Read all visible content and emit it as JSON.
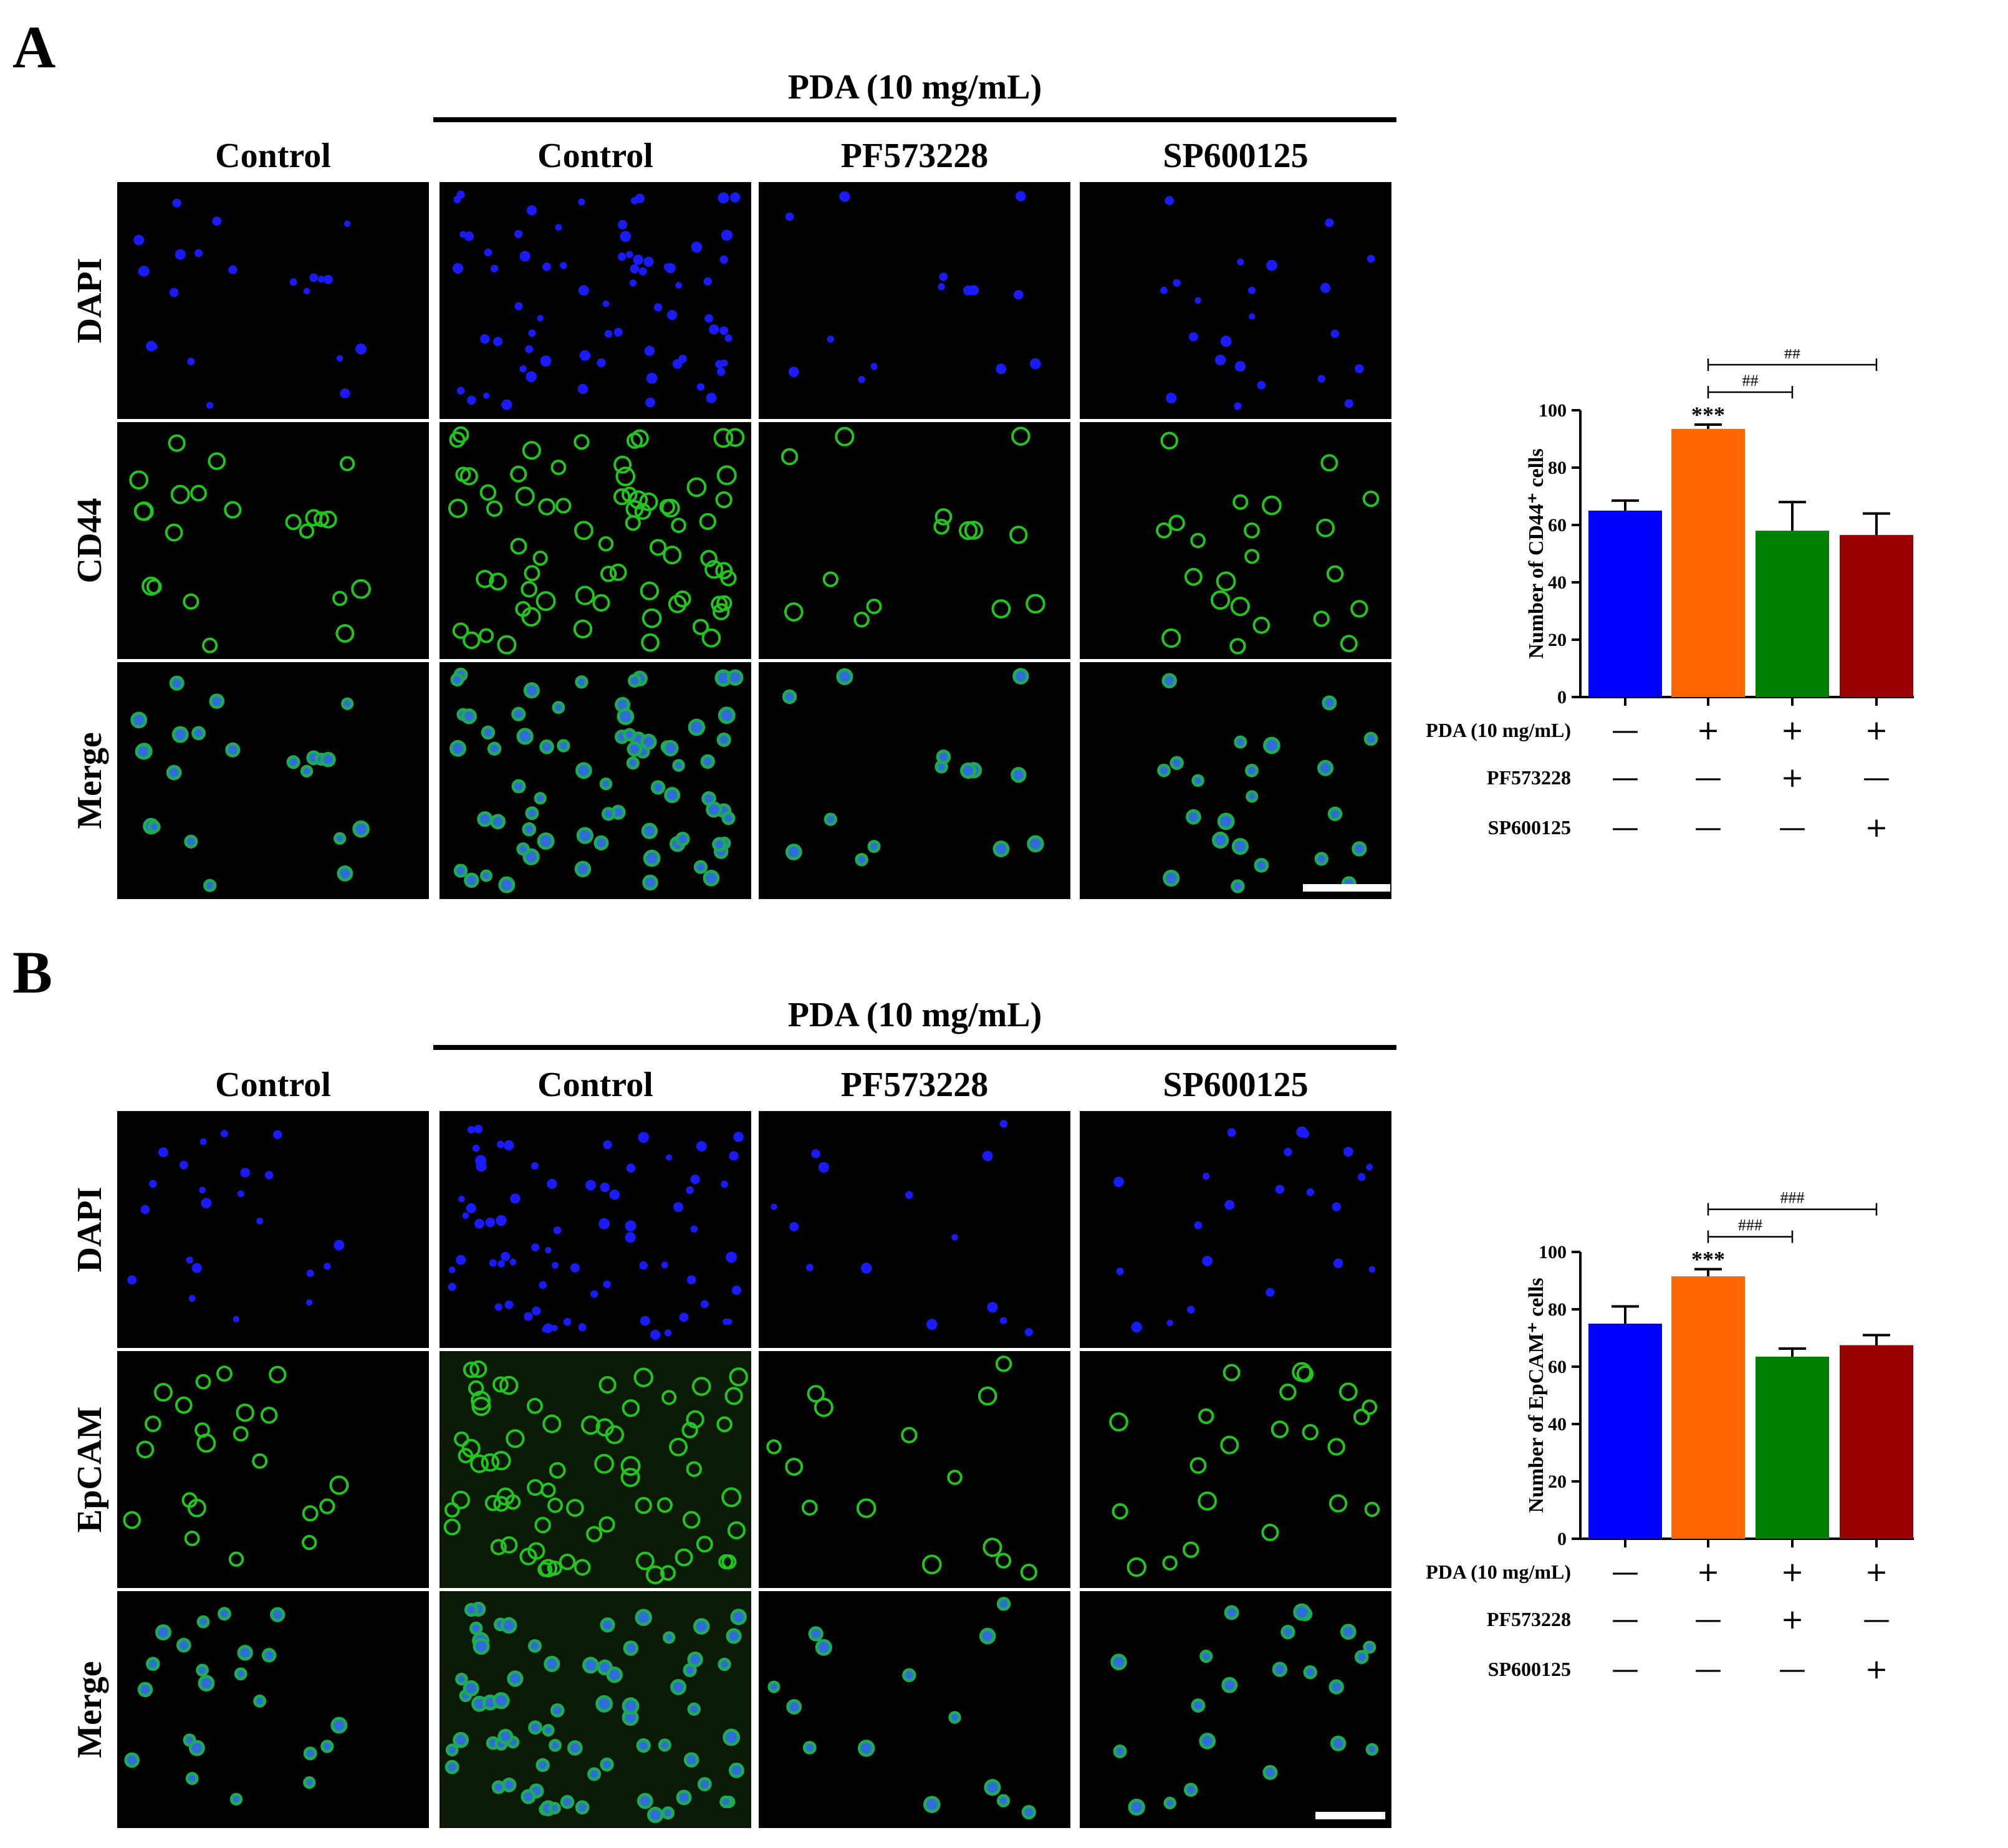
{
  "panels": [
    {
      "letter": "A",
      "group_label": "PDA (10 mg/mL)",
      "columns": [
        "Control",
        "Control",
        "PF573228",
        "SP600125"
      ],
      "rows": [
        "DAPI",
        "CD44",
        "Merge"
      ],
      "chart_data": {
        "type": "bar",
        "ylabel": "Number of CD44⁺ cells",
        "ylim": [
          0,
          100
        ],
        "yticks": [
          "0",
          "20",
          "40",
          "60",
          "80",
          "100"
        ],
        "values": [
          65,
          93.5,
          58,
          56.5
        ],
        "errors": [
          3.5,
          1.5,
          10,
          7.5
        ],
        "colors": [
          "#0000ff",
          "#ff6600",
          "#008000",
          "#990000"
        ],
        "significance": "***",
        "comparisons": [
          {
            "label": "##",
            "from": 1,
            "to": 2
          },
          {
            "label": "##",
            "from": 1,
            "to": 3
          }
        ],
        "conditions": [
          {
            "label": "PDA (10 mg/mL)",
            "signs": [
              "—",
              "+",
              "+",
              "+"
            ]
          },
          {
            "label": "PF573228",
            "signs": [
              "—",
              "—",
              "+",
              "—"
            ]
          },
          {
            "label": "SP600125",
            "signs": [
              "—",
              "—",
              "—",
              "+"
            ]
          }
        ]
      }
    },
    {
      "letter": "B",
      "group_label": "PDA (10 mg/mL)",
      "columns": [
        "Control",
        "Control",
        "PF573228",
        "SP600125"
      ],
      "rows": [
        "DAPI",
        "EpCAM",
        "Merge"
      ],
      "chart_data": {
        "type": "bar",
        "ylabel": "Number of EpCAM⁺ cells",
        "ylim": [
          0,
          100
        ],
        "yticks": [
          "0",
          "20",
          "40",
          "60",
          "80",
          "100"
        ],
        "values": [
          75,
          91.5,
          63.5,
          67.5
        ],
        "errors": [
          6,
          2.5,
          2.8,
          3.5
        ],
        "colors": [
          "#0000ff",
          "#ff6600",
          "#008000",
          "#990000"
        ],
        "significance": "***",
        "comparisons": [
          {
            "label": "###",
            "from": 1,
            "to": 2
          },
          {
            "label": "###",
            "from": 1,
            "to": 3
          }
        ],
        "conditions": [
          {
            "label": "PDA (10 mg/mL)",
            "signs": [
              "—",
              "+",
              "+",
              "+"
            ]
          },
          {
            "label": "PF573228",
            "signs": [
              "—",
              "—",
              "+",
              "—"
            ]
          },
          {
            "label": "SP600125",
            "signs": [
              "—",
              "—",
              "—",
              "+"
            ]
          }
        ]
      }
    }
  ]
}
